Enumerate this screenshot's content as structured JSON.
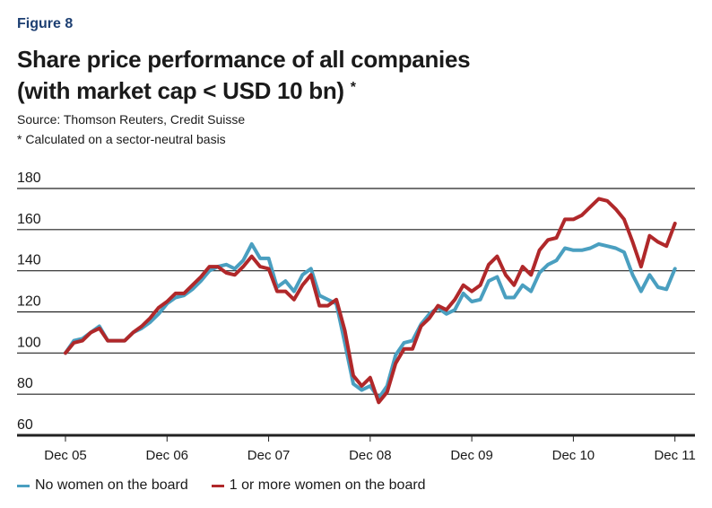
{
  "figure_label": "Figure 8",
  "title_line1": "Share price performance of all companies",
  "title_line2": "(with market cap < USD 10 bn)",
  "title_mark": "*",
  "source": "Source: Thomson Reuters, Credit Suisse",
  "footnote": "* Calculated on a sector-neutral basis",
  "colors": {
    "figure_label": "#1d3f72",
    "no_women": "#4a9fc0",
    "women": "#b0282a"
  },
  "chart_data": {
    "type": "line",
    "title": "Share price performance of all companies (with market cap < USD 10 bn) *",
    "xlabel": "",
    "ylabel": "",
    "x_start": "Dec 05",
    "x_end": "Dec 11",
    "x_frequency": "monthly",
    "x_ticks": [
      "Dec 05",
      "Dec 06",
      "Dec 07",
      "Dec 08",
      "Dec 09",
      "Dec 10",
      "Dec 11"
    ],
    "y_ticks": [
      60,
      80,
      100,
      120,
      140,
      160,
      180
    ],
    "ylim": [
      60,
      180
    ],
    "grid": true,
    "legend_position": "bottom",
    "series": [
      {
        "name": "No women on the board",
        "color": "#4a9fc0",
        "values": [
          100,
          106,
          107,
          110,
          113,
          106,
          106,
          106,
          110,
          112,
          115,
          119,
          124,
          127,
          128,
          131,
          135,
          140,
          142,
          143,
          141,
          145,
          153,
          146,
          146,
          132,
          135,
          130,
          138,
          141,
          128,
          126,
          124,
          105,
          85,
          82,
          84,
          78,
          84,
          99,
          105,
          106,
          114,
          119,
          122,
          119,
          121,
          129,
          125,
          126,
          135,
          137,
          127,
          127,
          133,
          130,
          139,
          143,
          145,
          151,
          150,
          150,
          151,
          153,
          152,
          151,
          149,
          138,
          130,
          138,
          132,
          131,
          141
        ]
      },
      {
        "name": "1 or more women on the board",
        "color": "#b0282a",
        "values": [
          100,
          105,
          106,
          110,
          112,
          106,
          106,
          106,
          110,
          113,
          117,
          122,
          125,
          129,
          129,
          133,
          137,
          142,
          142,
          139,
          138,
          142,
          147,
          142,
          141,
          130,
          130,
          126,
          133,
          138,
          123,
          123,
          126,
          111,
          89,
          84,
          88,
          76,
          81,
          95,
          102,
          102,
          113,
          117,
          123,
          121,
          126,
          133,
          130,
          133,
          143,
          147,
          138,
          133,
          142,
          138,
          150,
          155,
          156,
          165,
          165,
          167,
          171,
          175,
          174,
          170,
          165,
          154,
          142,
          157,
          154,
          152,
          163
        ]
      }
    ]
  }
}
